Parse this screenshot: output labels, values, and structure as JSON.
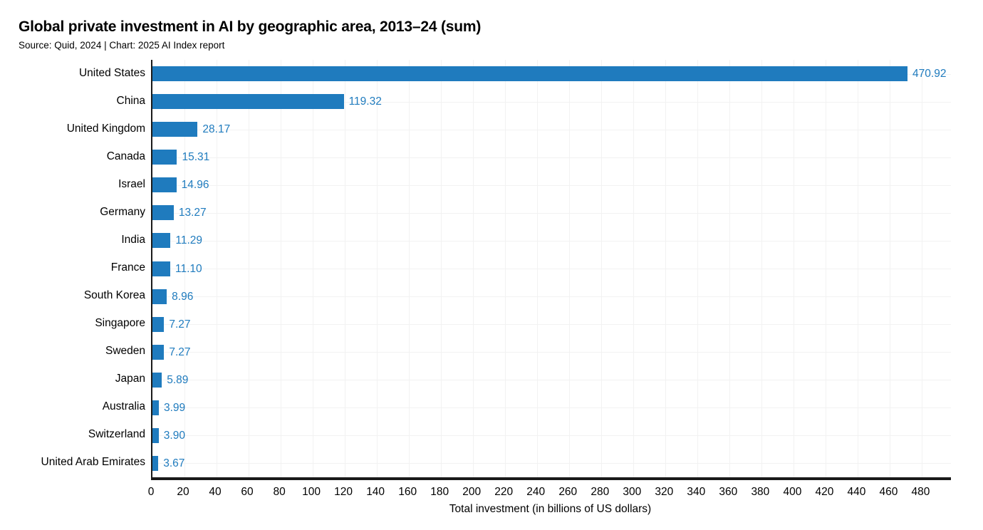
{
  "header": {
    "title": "Global private investment in AI by geographic area, 2013–24 (sum)",
    "source": "Source: Quid, 2024 | Chart: 2025 AI Index report"
  },
  "chart_data": {
    "type": "bar",
    "orientation": "horizontal",
    "title": "Global private investment in AI by geographic area, 2013–24 (sum)",
    "subtitle": "Source: Quid, 2024 | Chart: 2025 AI Index report",
    "categories": [
      "United States",
      "China",
      "United Kingdom",
      "Canada",
      "Israel",
      "Germany",
      "India",
      "France",
      "South Korea",
      "Singapore",
      "Sweden",
      "Japan",
      "Australia",
      "Switzerland",
      "United Arab Emirates"
    ],
    "values": [
      470.92,
      119.32,
      28.17,
      15.31,
      14.96,
      13.27,
      11.29,
      11.1,
      8.96,
      7.27,
      7.27,
      5.89,
      3.99,
      3.9,
      3.67
    ],
    "value_labels": [
      "470.92",
      "119.32",
      "28.17",
      "15.31",
      "14.96",
      "13.27",
      "11.29",
      "11.10",
      "8.96",
      "7.27",
      "7.27",
      "5.89",
      "3.99",
      "3.90",
      "3.67"
    ],
    "xlabel": "Total investment (in billions of US dollars)",
    "ylabel": "",
    "xlim": [
      0,
      498
    ],
    "xticks": [
      0,
      20,
      40,
      60,
      80,
      100,
      120,
      140,
      160,
      180,
      200,
      220,
      240,
      260,
      280,
      300,
      320,
      340,
      360,
      380,
      400,
      420,
      440,
      460,
      480
    ],
    "grid": "on",
    "legend": "none",
    "colors": {
      "bar": "#1F7BBE",
      "value_label": "#1F7BBE",
      "axis": "#1A1A1A",
      "grid": "#F2F2F2",
      "text": "#000000"
    }
  }
}
